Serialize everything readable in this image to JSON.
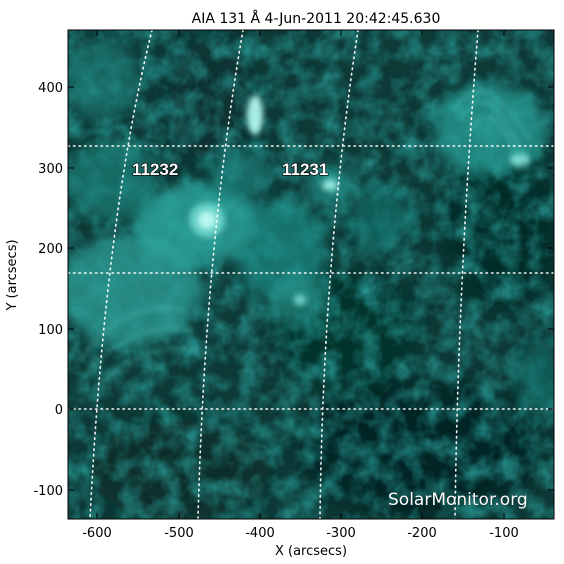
{
  "title": "AIA 131 Å   4-Jun-2011 20:42:45.630",
  "axes": {
    "x_label": "X (arcsecs)",
    "y_label": "Y (arcsecs)",
    "x_range": [
      -640,
      -30
    ],
    "y_range": [
      -135,
      470
    ],
    "x_ticks": [
      -600,
      -500,
      -400,
      -300,
      -200,
      -100
    ],
    "y_ticks": [
      -100,
      0,
      100,
      200,
      300,
      400
    ]
  },
  "active_regions": [
    {
      "number": "11232",
      "x": -530,
      "y": 297
    },
    {
      "number": "11231",
      "x": -350,
      "y": 297
    }
  ],
  "grid": {
    "visible": true,
    "latitude_lines_y": [
      0,
      167,
      326
    ],
    "longitude_lines_x_at_y0": [
      -605,
      -470,
      -328,
      -155
    ]
  },
  "watermark": "SolarMonitor.org",
  "colors": {
    "background": "#ffffff",
    "image_base": "#0d3a37",
    "image_bright": "#7ef5e8",
    "grid": "#ffffff",
    "text": "#000000"
  }
}
